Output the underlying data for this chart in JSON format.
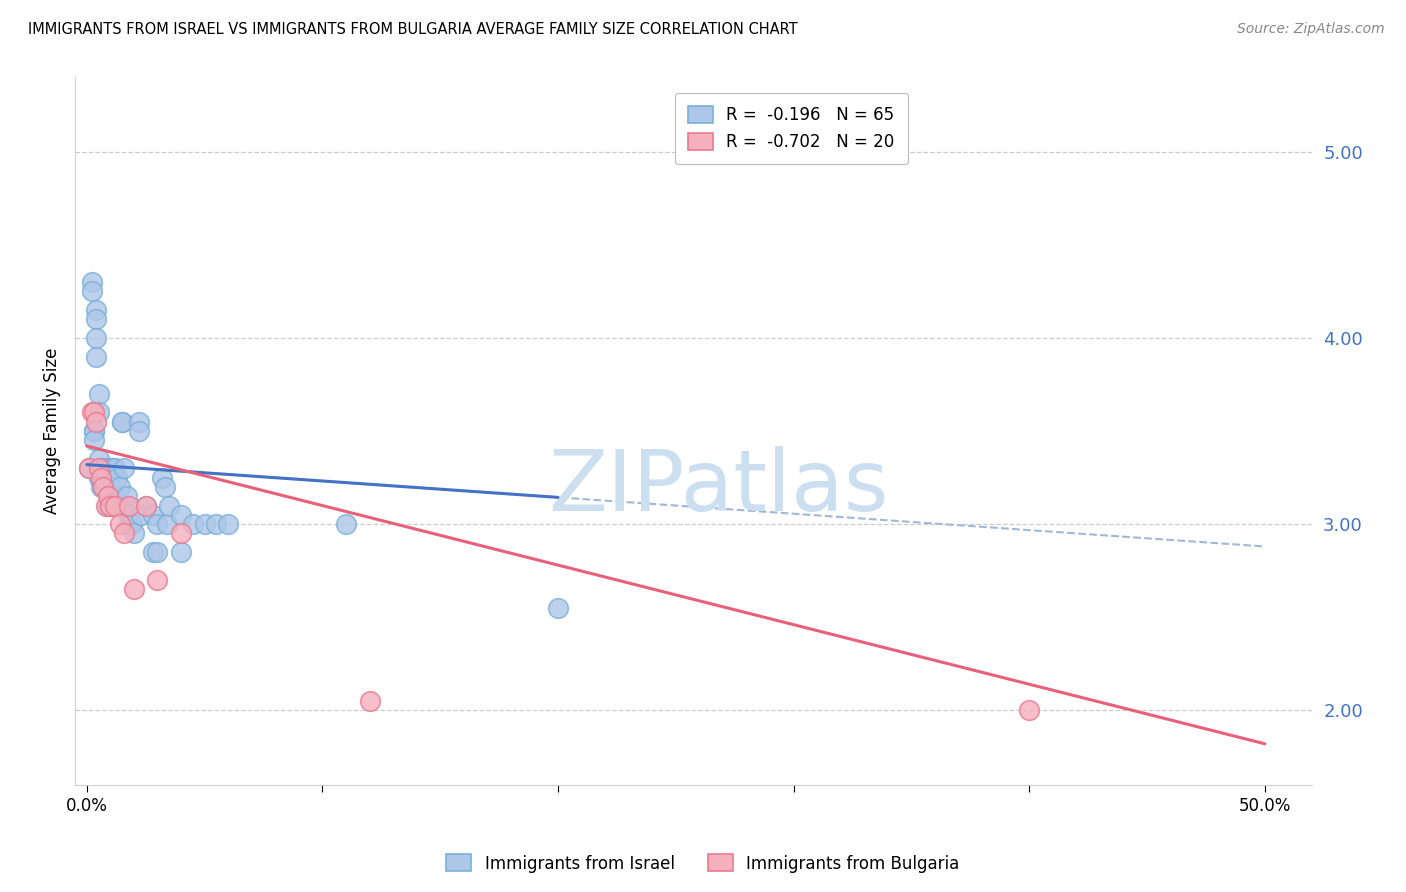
{
  "title": "IMMIGRANTS FROM ISRAEL VS IMMIGRANTS FROM BULGARIA AVERAGE FAMILY SIZE CORRELATION CHART",
  "source": "Source: ZipAtlas.com",
  "ylabel": "Average Family Size",
  "y_lim": [
    1.6,
    5.4
  ],
  "x_lim": [
    -0.5,
    52
  ],
  "israel_color": "#aec6e8",
  "israel_edge_color": "#7ab0d8",
  "bulgaria_color": "#f4b0bc",
  "bulgaria_edge_color": "#e87a90",
  "israel_line_color": "#4472c4",
  "bulgaria_line_color": "#e8607a",
  "dashed_line_color": "#a0b8d8",
  "watermark_text": "ZIPatlas",
  "watermark_color": "#ccdff0",
  "legend_R_israel": "R =  -0.196",
  "legend_N_israel": "N = 65",
  "legend_R_bulgaria": "R =  -0.702",
  "legend_N_bulgaria": "N = 20",
  "tick_color": "#4472c4",
  "grid_color": "#cccccc",
  "bg_color": "#ffffff",
  "title_fontsize": 10.5,
  "israel_x": [
    0.1,
    0.2,
    0.2,
    0.3,
    0.3,
    0.3,
    0.4,
    0.4,
    0.4,
    0.4,
    0.5,
    0.5,
    0.5,
    0.5,
    0.6,
    0.6,
    0.6,
    0.7,
    0.7,
    0.7,
    0.8,
    0.8,
    0.8,
    0.9,
    0.9,
    1.0,
    1.0,
    1.0,
    1.0,
    1.1,
    1.1,
    1.2,
    1.2,
    1.3,
    1.3,
    1.4,
    1.5,
    1.5,
    1.6,
    1.6,
    1.7,
    1.8,
    1.8,
    1.9,
    2.0,
    2.2,
    2.2,
    2.3,
    2.5,
    2.8,
    2.8,
    3.0,
    3.0,
    3.2,
    3.3,
    3.4,
    3.5,
    4.0,
    4.0,
    4.5,
    5.0,
    5.5,
    6.0,
    11.0,
    20.0
  ],
  "israel_y": [
    3.3,
    4.3,
    4.25,
    3.5,
    3.5,
    3.45,
    4.15,
    4.1,
    4.0,
    3.9,
    3.7,
    3.6,
    3.35,
    3.25,
    3.3,
    3.25,
    3.2,
    3.3,
    3.25,
    3.2,
    3.3,
    3.25,
    3.2,
    3.3,
    3.1,
    3.3,
    3.25,
    3.2,
    3.1,
    3.3,
    3.1,
    3.3,
    3.15,
    3.25,
    3.1,
    3.2,
    3.55,
    3.55,
    3.3,
    3.1,
    3.15,
    3.05,
    3.0,
    3.0,
    2.95,
    3.55,
    3.5,
    3.05,
    3.1,
    3.05,
    2.85,
    3.0,
    2.85,
    3.25,
    3.2,
    3.0,
    3.1,
    3.05,
    2.85,
    3.0,
    3.0,
    3.0,
    3.0,
    3.0,
    2.55
  ],
  "bulgaria_x": [
    0.1,
    0.2,
    0.3,
    0.4,
    0.5,
    0.6,
    0.7,
    0.8,
    0.9,
    1.0,
    1.2,
    1.4,
    1.6,
    1.8,
    2.0,
    2.5,
    3.0,
    4.0,
    12.0,
    40.0
  ],
  "bulgaria_y": [
    3.3,
    3.6,
    3.6,
    3.55,
    3.3,
    3.25,
    3.2,
    3.1,
    3.15,
    3.1,
    3.1,
    3.0,
    2.95,
    3.1,
    2.65,
    3.1,
    2.7,
    2.95,
    2.05,
    2.0
  ],
  "israel_trend_x0": 0.0,
  "israel_trend_y0": 3.32,
  "israel_trend_x1": 50.0,
  "israel_trend_y1": 2.88,
  "bulgaria_trend_x0": 0.0,
  "bulgaria_trend_y0": 3.42,
  "bulgaria_trend_x1": 50.0,
  "bulgaria_trend_y1": 1.82
}
